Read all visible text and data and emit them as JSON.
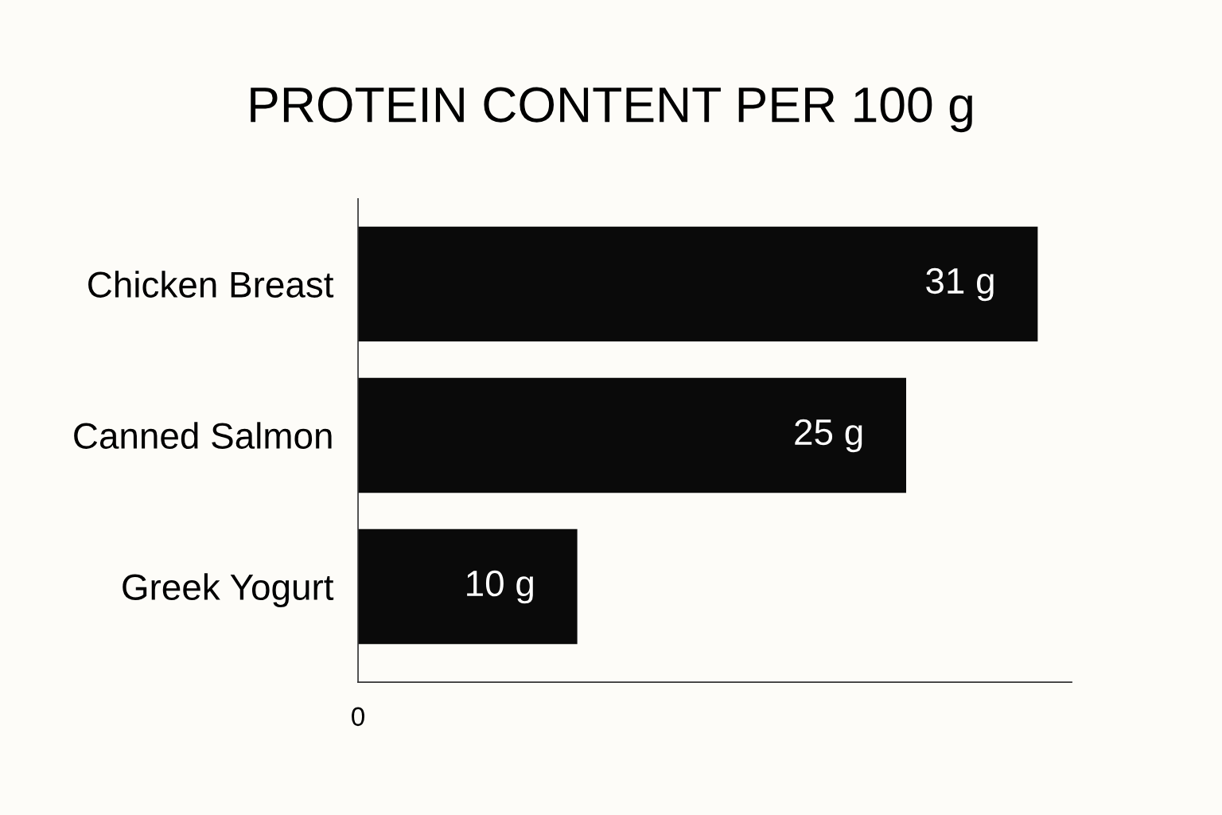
{
  "chart_data": {
    "type": "bar",
    "orientation": "horizontal",
    "title": "PROTEIN CONTENT PER 100 g",
    "categories": [
      "Chicken Breast",
      "Canned Salmon",
      "Greek Yogurt"
    ],
    "values": [
      31,
      25,
      10
    ],
    "color": "#0a0a0a",
    "value_labels": [
      "31 g",
      "25 g",
      "10 g"
    ],
    "annotations": [
      "0"
    ],
    "grid": false,
    "legend": false
  }
}
